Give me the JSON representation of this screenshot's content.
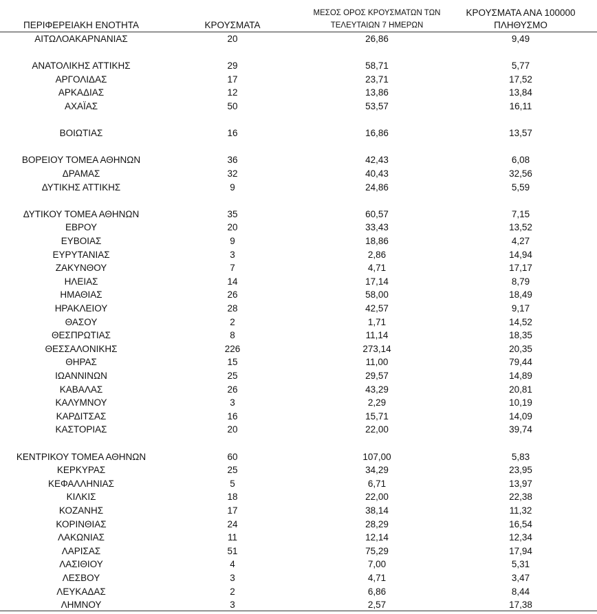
{
  "table": {
    "headers": [
      "ΠΕΡΙΦΕΡΕΙΑΚΗ ΕΝΟΤΗΤΑ",
      "ΚΡΟΥΣΜΑΤΑ",
      [
        "ΜΕΣΟΣ ΟΡΟΣ ΚΡΟΥΣΜΑΤΩΝ ΤΩΝ",
        "ΤΕΛΕΥΤΑΙΩΝ 7 ΗΜΕΡΩΝ"
      ],
      [
        "ΚΡΟΥΣΜΑΤΑ ΑΝΑ 100000",
        "ΠΛΗΘΥΣΜΟ"
      ]
    ],
    "groups": [
      [
        [
          "ΑΙΤΩΛΟΑΚΑΡΝΑΝΙΑΣ",
          "20",
          "26,86",
          "9,49"
        ]
      ],
      [
        [
          "ΑΝΑΤΟΛΙΚΗΣ ΑΤΤΙΚΗΣ",
          "29",
          "58,71",
          "5,77"
        ],
        [
          "ΑΡΓΟΛΙΔΑΣ",
          "17",
          "23,71",
          "17,52"
        ],
        [
          "ΑΡΚΑΔΙΑΣ",
          "12",
          "13,86",
          "13,84"
        ],
        [
          "ΑΧΑΪΑΣ",
          "50",
          "53,57",
          "16,11"
        ]
      ],
      [
        [
          "ΒΟΙΩΤΙΑΣ",
          "16",
          "16,86",
          "13,57"
        ]
      ],
      [
        [
          "ΒΟΡΕΙΟΥ ΤΟΜΕΑ ΑΘΗΝΩΝ",
          "36",
          "42,43",
          "6,08"
        ],
        [
          "ΔΡΑΜΑΣ",
          "32",
          "40,43",
          "32,56"
        ],
        [
          "ΔΥΤΙΚΗΣ ΑΤΤΙΚΗΣ",
          "9",
          "24,86",
          "5,59"
        ]
      ],
      [
        [
          "ΔΥΤΙΚΟΥ ΤΟΜΕΑ ΑΘΗΝΩΝ",
          "35",
          "60,57",
          "7,15"
        ],
        [
          "ΕΒΡΟΥ",
          "20",
          "33,43",
          "13,52"
        ],
        [
          "ΕΥΒΟΙΑΣ",
          "9",
          "18,86",
          "4,27"
        ],
        [
          "ΕΥΡΥΤΑΝΙΑΣ",
          "3",
          "2,86",
          "14,94"
        ],
        [
          "ΖΑΚΥΝΘΟΥ",
          "7",
          "4,71",
          "17,17"
        ],
        [
          "ΗΛΕΙΑΣ",
          "14",
          "17,14",
          "8,79"
        ],
        [
          "ΗΜΑΘΙΑΣ",
          "26",
          "58,00",
          "18,49"
        ],
        [
          "ΗΡΑΚΛΕΙΟΥ",
          "28",
          "42,57",
          "9,17"
        ],
        [
          "ΘΑΣΟΥ",
          "2",
          "1,71",
          "14,52"
        ],
        [
          "ΘΕΣΠΡΩΤΙΑΣ",
          "8",
          "11,14",
          "18,35"
        ],
        [
          "ΘΕΣΣΑΛΟΝΙΚΗΣ",
          "226",
          "273,14",
          "20,35"
        ],
        [
          "ΘΗΡΑΣ",
          "15",
          "11,00",
          "79,44"
        ],
        [
          "ΙΩΑΝΝΙΝΩΝ",
          "25",
          "29,57",
          "14,89"
        ],
        [
          "ΚΑΒΑΛΑΣ",
          "26",
          "43,29",
          "20,81"
        ],
        [
          "ΚΑΛΥΜΝΟΥ",
          "3",
          "2,29",
          "10,19"
        ],
        [
          "ΚΑΡΔΙΤΣΑΣ",
          "16",
          "15,71",
          "14,09"
        ],
        [
          "ΚΑΣΤΟΡΙΑΣ",
          "20",
          "22,00",
          "39,74"
        ]
      ],
      [
        [
          "ΚΕΝΤΡΙΚΟΥ ΤΟΜΕΑ ΑΘΗΝΩΝ",
          "60",
          "107,00",
          "5,83"
        ],
        [
          "ΚΕΡΚΥΡΑΣ",
          "25",
          "34,29",
          "23,95"
        ],
        [
          "ΚΕΦΑΛΛΗΝΙΑΣ",
          "5",
          "6,71",
          "13,97"
        ],
        [
          "ΚΙΛΚΙΣ",
          "18",
          "22,00",
          "22,38"
        ],
        [
          "ΚΟΖΑΝΗΣ",
          "17",
          "38,14",
          "11,32"
        ],
        [
          "ΚΟΡΙΝΘΙΑΣ",
          "24",
          "28,29",
          "16,54"
        ],
        [
          "ΛΑΚΩΝΙΑΣ",
          "11",
          "12,14",
          "12,34"
        ],
        [
          "ΛΑΡΙΣΑΣ",
          "51",
          "75,29",
          "17,94"
        ],
        [
          "ΛΑΣΙΘΙΟΥ",
          "4",
          "7,00",
          "5,31"
        ],
        [
          "ΛΕΣΒΟΥ",
          "3",
          "4,71",
          "3,47"
        ],
        [
          "ΛΕΥΚΑΔΑΣ",
          "2",
          "6,86",
          "8,44"
        ],
        [
          "ΛΗΜΝΟΥ",
          "3",
          "2,57",
          "17,38"
        ]
      ]
    ]
  }
}
